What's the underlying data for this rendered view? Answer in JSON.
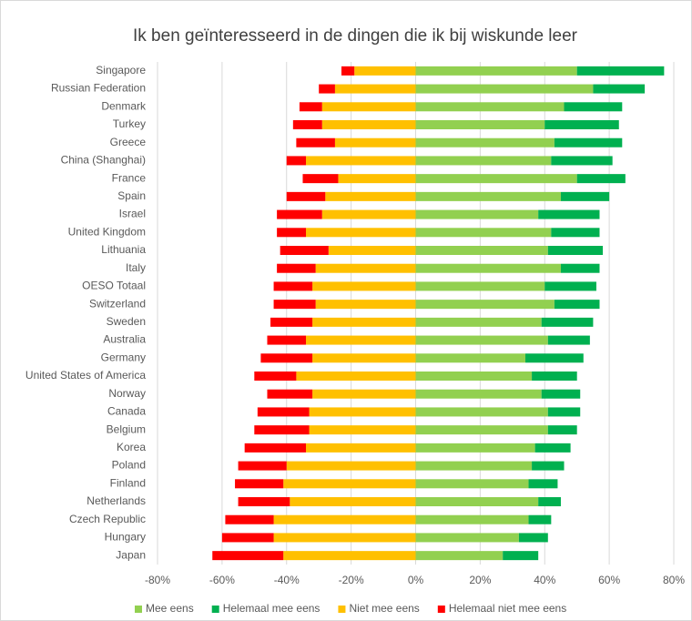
{
  "chart_data": {
    "type": "diverging-bar",
    "title": "Ik ben geïnteresseerd in de dingen die ik bij wiskunde leer",
    "categories": [
      "Singapore",
      "Russian Federation",
      "Denmark",
      "Turkey",
      "Greece",
      "China (Shanghai)",
      "France",
      "Spain",
      "Israel",
      "United Kingdom",
      "Lithuania",
      "Italy",
      "OESO Totaal",
      "Switzerland",
      "Sweden",
      "Australia",
      "Germany",
      "United States of America",
      "Norway",
      "Canada",
      "Belgium",
      "Korea",
      "Poland",
      "Finland",
      "Netherlands",
      "Czech Republic",
      "Hungary",
      "Japan"
    ],
    "series": [
      {
        "name": "Mee eens",
        "color": "#92d050",
        "values": [
          50,
          55,
          46,
          40,
          43,
          42,
          50,
          45,
          38,
          42,
          41,
          45,
          40,
          43,
          39,
          41,
          34,
          36,
          39,
          41,
          41,
          37,
          36,
          35,
          38,
          35,
          32,
          27
        ]
      },
      {
        "name": "Helemaal mee eens",
        "color": "#00b050",
        "values": [
          27,
          16,
          18,
          23,
          21,
          19,
          15,
          15,
          19,
          15,
          17,
          12,
          16,
          14,
          16,
          13,
          18,
          14,
          12,
          10,
          9,
          11,
          10,
          9,
          7,
          7,
          9,
          11
        ]
      },
      {
        "name": "Niet mee eens",
        "color": "#ffc000",
        "values": [
          -19,
          -25,
          -29,
          -29,
          -25,
          -34,
          -24,
          -28,
          -29,
          -34,
          -27,
          -31,
          -32,
          -31,
          -32,
          -34,
          -32,
          -37,
          -32,
          -33,
          -33,
          -34,
          -40,
          -41,
          -39,
          -44,
          -44,
          -41
        ]
      },
      {
        "name": "Helemaal niet mee eens",
        "color": "#ff0000",
        "values": [
          -4,
          -5,
          -7,
          -9,
          -12,
          -6,
          -11,
          -12,
          -14,
          -9,
          -15,
          -12,
          -12,
          -13,
          -13,
          -12,
          -16,
          -13,
          -14,
          -16,
          -17,
          -19,
          -15,
          -15,
          -16,
          -15,
          -16,
          -22
        ]
      }
    ],
    "xlim": [
      -80,
      80
    ],
    "xticks": [
      {
        "value": -80,
        "label": "-80%"
      },
      {
        "value": -60,
        "label": "-60%"
      },
      {
        "value": -40,
        "label": "-40%"
      },
      {
        "value": -20,
        "label": "-20%"
      },
      {
        "value": 0,
        "label": "0%"
      },
      {
        "value": 20,
        "label": "20%"
      },
      {
        "value": 40,
        "label": "40%"
      },
      {
        "value": 60,
        "label": "60%"
      },
      {
        "value": 80,
        "label": "80%"
      }
    ],
    "grid": true,
    "legend": "bottom"
  }
}
